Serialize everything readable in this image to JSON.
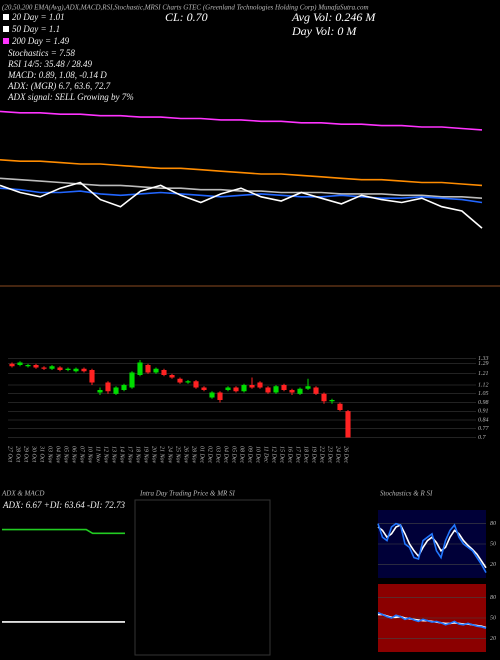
{
  "header": {
    "title": "(20,50,200 EMA(Avg),ADX,MACD,RSI,Stochastic,MRSI Charts GTEC (Greenland Technologies Holding Corp) MunafaSutra.com",
    "cl": "CL: 0.70",
    "avg_vol": "Avg Vol: 0.246  M",
    "day_vol": "Day Vol: 0  M",
    "ema20": "20 Day = 1.01",
    "ema50": "50 Day = 1.1",
    "ema200": "200 Day = 1.49",
    "stochastics": "Stochastics = 7.58",
    "rsi": "RSI 14/5: 35.48 / 28.49",
    "macd": "MACD: 0.89, 1.08, -0.14  D",
    "adx": "ADX:                (MGR) 6.7, 63.6, 72.7",
    "adx_signal": "ADX  signal: SELL Growing by 7%"
  },
  "chart_data": [
    {
      "type": "line",
      "ylim": [
        0.4,
        1.7
      ],
      "series": [
        {
          "color": "#ff33ff",
          "values": [
            1.62,
            1.61,
            1.61,
            1.6,
            1.6,
            1.59,
            1.59,
            1.58,
            1.58,
            1.57,
            1.57,
            1.56,
            1.56,
            1.55,
            1.55,
            1.54,
            1.54,
            1.53,
            1.53,
            1.52,
            1.52,
            1.51,
            1.51,
            1.5,
            1.49
          ]
        },
        {
          "color": "#ff8c00",
          "values": [
            1.28,
            1.27,
            1.27,
            1.26,
            1.25,
            1.25,
            1.24,
            1.23,
            1.22,
            1.22,
            1.21,
            1.2,
            1.19,
            1.18,
            1.18,
            1.17,
            1.16,
            1.15,
            1.14,
            1.14,
            1.13,
            1.12,
            1.12,
            1.11,
            1.1
          ]
        },
        {
          "color": "#bbbbbb",
          "values": [
            1.15,
            1.14,
            1.13,
            1.12,
            1.11,
            1.1,
            1.1,
            1.09,
            1.08,
            1.08,
            1.07,
            1.07,
            1.06,
            1.06,
            1.05,
            1.05,
            1.05,
            1.04,
            1.04,
            1.04,
            1.03,
            1.03,
            1.02,
            1.02,
            1.01
          ]
        },
        {
          "color": "#2266ff",
          "values": [
            1.08,
            1.07,
            1.05,
            1.05,
            1.06,
            1.04,
            1.03,
            1.04,
            1.05,
            1.04,
            1.03,
            1.02,
            1.03,
            1.04,
            1.03,
            1.02,
            1.02,
            1.03,
            1.02,
            1.01,
            1.01,
            1.02,
            1.01,
            1.0,
            0.98
          ]
        },
        {
          "color": "#ffffff",
          "values": [
            1.1,
            1.05,
            1.02,
            1.08,
            1.12,
            1.0,
            0.95,
            1.06,
            1.1,
            1.03,
            0.98,
            1.04,
            1.08,
            1.02,
            0.99,
            1.05,
            1.01,
            0.97,
            1.03,
            1.0,
            0.98,
            1.01,
            0.95,
            0.92,
            0.8
          ]
        }
      ]
    },
    {
      "type": "candlestick",
      "ylim": [
        0.68,
        1.36
      ],
      "yticks": [
        1.33,
        1.29,
        1.21,
        1.12,
        1.05,
        0.98,
        0.91,
        0.84,
        0.77,
        0.7
      ],
      "up_color": "#00dd00",
      "down_color": "#ff2222",
      "categories": [
        "27 Oct",
        "28 Oct",
        "29 Oct",
        "30 Oct",
        "31 Oct",
        "03 Nov",
        "04 Nov",
        "05 Nov",
        "06 Nov",
        "07 Nov",
        "10 Nov",
        "11 Nov",
        "12 Nov",
        "13 Nov",
        "14 Nov",
        "17 Nov",
        "18 Nov",
        "19 Nov",
        "20 Nov",
        "21 Nov",
        "24 Nov",
        "25 Nov",
        "26 Nov",
        "28 Nov",
        "01 Dec",
        "02 Dec",
        "03 Dec",
        "04 Dec",
        "05 Dec",
        "08 Dec",
        "09 Dec",
        "10 Dec",
        "11 Dec",
        "12 Dec",
        "15 Dec",
        "16 Dec",
        "17 Dec",
        "18 Dec",
        "19 Dec",
        "22 Dec",
        "23 Dec",
        "24 Dec",
        "26 Dec"
      ],
      "open": [
        1.29,
        1.28,
        1.27,
        1.28,
        1.26,
        1.25,
        1.26,
        1.24,
        1.23,
        1.25,
        1.24,
        1.06,
        1.14,
        1.05,
        1.08,
        1.1,
        1.2,
        1.28,
        1.22,
        1.24,
        1.2,
        1.17,
        1.14,
        1.15,
        1.1,
        1.02,
        1.06,
        1.08,
        1.1,
        1.07,
        1.12,
        1.14,
        1.1,
        1.06,
        1.12,
        1.08,
        1.05,
        1.09,
        1.1,
        1.05,
        0.99,
        0.97,
        0.91
      ],
      "high": [
        1.3,
        1.31,
        1.29,
        1.29,
        1.27,
        1.28,
        1.27,
        1.26,
        1.26,
        1.26,
        1.25,
        1.1,
        1.15,
        1.11,
        1.13,
        1.23,
        1.32,
        1.29,
        1.26,
        1.25,
        1.21,
        1.18,
        1.16,
        1.16,
        1.11,
        1.07,
        1.07,
        1.11,
        1.11,
        1.13,
        1.18,
        1.15,
        1.11,
        1.12,
        1.13,
        1.09,
        1.1,
        1.17,
        1.11,
        1.06,
        1.01,
        0.98,
        0.92
      ],
      "low": [
        1.26,
        1.27,
        1.26,
        1.25,
        1.24,
        1.24,
        1.23,
        1.23,
        1.22,
        1.22,
        1.12,
        1.04,
        1.05,
        1.04,
        1.07,
        1.09,
        1.19,
        1.21,
        1.21,
        1.19,
        1.17,
        1.13,
        1.13,
        1.09,
        1.07,
        1.01,
        0.98,
        1.07,
        1.06,
        1.06,
        1.09,
        1.09,
        1.05,
        1.05,
        1.07,
        1.04,
        1.04,
        1.08,
        1.04,
        0.97,
        0.97,
        0.91,
        0.7
      ],
      "close": [
        1.27,
        1.3,
        1.28,
        1.26,
        1.25,
        1.27,
        1.24,
        1.25,
        1.25,
        1.23,
        1.14,
        1.08,
        1.07,
        1.1,
        1.12,
        1.22,
        1.3,
        1.22,
        1.25,
        1.2,
        1.18,
        1.14,
        1.15,
        1.1,
        1.08,
        1.06,
        1.0,
        1.1,
        1.07,
        1.12,
        1.1,
        1.1,
        1.06,
        1.11,
        1.08,
        1.06,
        1.09,
        1.11,
        1.05,
        0.99,
        1.0,
        0.92,
        0.7
      ]
    },
    {
      "type": "line",
      "title": "ADX & MACD",
      "subtitle": "ADX: 6.67  +DI: 63.64  -DI: 72.73",
      "ylim": [
        0,
        100
      ],
      "series": [
        {
          "color": "#22cc22",
          "values": [
            88,
            88,
            88,
            88,
            88,
            88,
            88,
            88,
            88,
            88,
            88,
            88,
            88,
            88,
            82,
            82,
            82,
            82,
            82,
            82
          ]
        }
      ]
    },
    {
      "type": "line",
      "ylim": [
        -1,
        1
      ],
      "series": [
        {
          "color": "#ffffff",
          "values": [
            0.05,
            0.05,
            0.05,
            0.05,
            0.05,
            0.05,
            0.05,
            0.05,
            0.05,
            0.05,
            0.05,
            0.05,
            0.05,
            0.05,
            0.05,
            0.05,
            0.05,
            0.05,
            0.05,
            0.05
          ]
        }
      ]
    },
    {
      "type": "line",
      "title": "Intra Day Trading Price & MR SI",
      "ylim": [
        0,
        100
      ],
      "series": []
    },
    {
      "type": "line",
      "title": "Stochastics & R SI",
      "ylim": [
        0,
        100
      ],
      "yticks": [
        80,
        50,
        20
      ],
      "background": "#000038",
      "series": [
        {
          "color": "#ffffff",
          "values": [
            75,
            70,
            60,
            65,
            75,
            78,
            65,
            50,
            40,
            32,
            45,
            55,
            60,
            52,
            40,
            45,
            60,
            70,
            65,
            55,
            48,
            42,
            35,
            25,
            15
          ]
        },
        {
          "color": "#2277ff",
          "values": [
            80,
            60,
            55,
            75,
            80,
            78,
            50,
            45,
            30,
            28,
            55,
            60,
            65,
            40,
            30,
            55,
            70,
            78,
            60,
            50,
            45,
            40,
            30,
            20,
            8
          ]
        }
      ]
    },
    {
      "type": "line",
      "ylim": [
        0,
        100
      ],
      "yticks": [
        80,
        50,
        20
      ],
      "background": "#8b0000",
      "series": [
        {
          "color": "#ffffff",
          "values": [
            55,
            55,
            53,
            51,
            51,
            52,
            50,
            49,
            48,
            47,
            46,
            46,
            45,
            44,
            43,
            42,
            42,
            43,
            42,
            41,
            41,
            40,
            39,
            38,
            36
          ]
        },
        {
          "color": "#2277ff",
          "values": [
            58,
            55,
            52,
            50,
            54,
            52,
            48,
            50,
            47,
            45,
            48,
            46,
            44,
            45,
            43,
            40,
            42,
            45,
            41,
            40,
            42,
            40,
            38,
            37,
            35
          ]
        }
      ]
    }
  ]
}
